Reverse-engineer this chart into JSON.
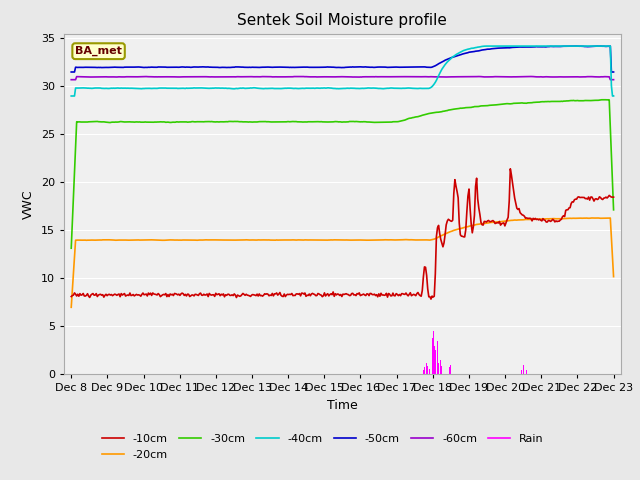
{
  "title": "Sentek Soil Moisture profile",
  "xlabel": "Time",
  "ylabel": "VWC",
  "annotation_text": "BA_met",
  "annotation_bg": "#FFFFCC",
  "annotation_border": "#999900",
  "bg_color": "#E8E8E8",
  "plot_bg": "#F0F0F0",
  "grid_color": "white",
  "series_colors": {
    "10cm": "#CC0000",
    "20cm": "#FF9900",
    "30cm": "#33CC00",
    "40cm": "#00CCCC",
    "50cm": "#0000CC",
    "60cm": "#9900CC",
    "rain": "#FF00FF"
  },
  "xtick_labels": [
    "Dec 8",
    "Dec 9",
    "Dec 10",
    "Dec 11",
    "Dec 12",
    "Dec 13",
    "Dec 14",
    "Dec 15",
    "Dec 16",
    "Dec 17",
    "Dec 18",
    "Dec 19",
    "Dec 20",
    "Dec 21",
    "Dec 22",
    "Dec 23"
  ]
}
